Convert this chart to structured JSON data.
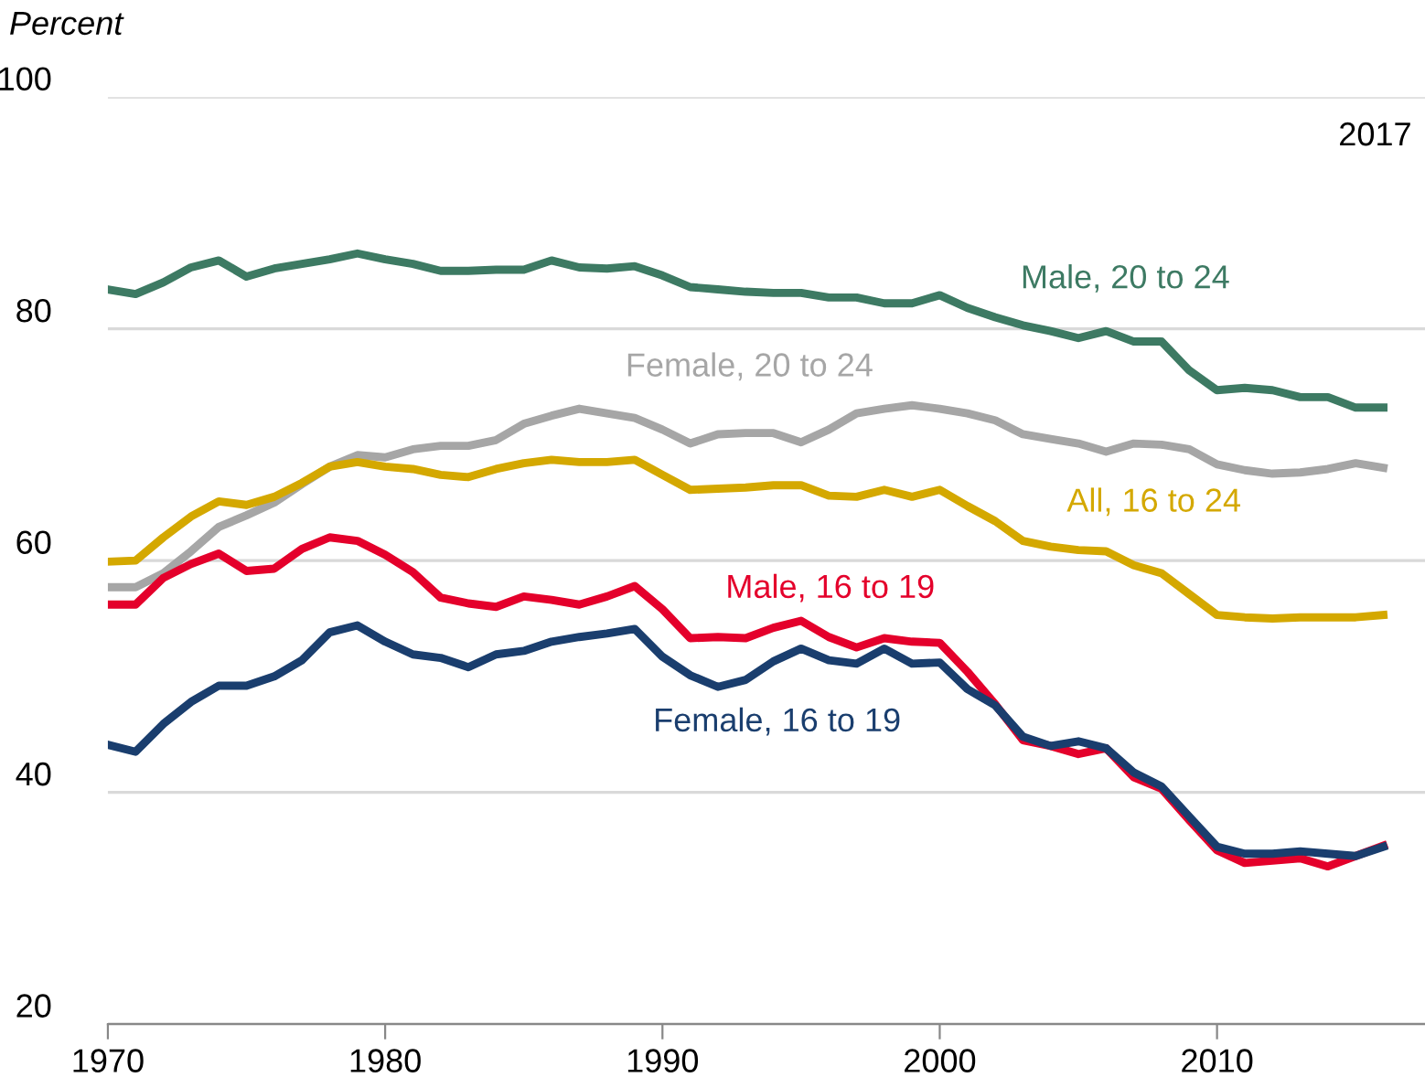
{
  "chart_data": {
    "type": "line",
    "ylabel": "Percent",
    "annotations": [
      "2017"
    ],
    "x": [
      1970,
      1971,
      1972,
      1973,
      1974,
      1975,
      1976,
      1977,
      1978,
      1979,
      1980,
      1981,
      1982,
      1983,
      1984,
      1985,
      1986,
      1987,
      1988,
      1989,
      1990,
      1991,
      1992,
      1993,
      1994,
      1995,
      1996,
      1997,
      1998,
      1999,
      2000,
      2001,
      2002,
      2003,
      2004,
      2005,
      2006,
      2007,
      2008,
      2009,
      2010,
      2011,
      2012,
      2013,
      2014,
      2015,
      2016
    ],
    "series": [
      {
        "name": "Male, 20 to 24",
        "color": "#3d7a63",
        "values": [
          83.4,
          83.0,
          84.0,
          85.3,
          85.9,
          84.5,
          85.2,
          85.6,
          86.0,
          86.5,
          86.0,
          85.6,
          85.0,
          85.0,
          85.1,
          85.1,
          85.9,
          85.3,
          85.2,
          85.4,
          84.6,
          83.6,
          83.4,
          83.2,
          83.1,
          83.1,
          82.7,
          82.7,
          82.2,
          82.2,
          82.9,
          81.8,
          81.0,
          80.3,
          79.8,
          79.2,
          79.8,
          78.9,
          78.9,
          76.4,
          74.7,
          74.9,
          74.7,
          74.1,
          74.1,
          73.2,
          73.2
        ]
      },
      {
        "name": "Female, 20 to 24",
        "color": "#a6a6a6",
        "values": [
          57.7,
          57.7,
          58.9,
          60.8,
          62.9,
          63.9,
          65.0,
          66.6,
          68.1,
          69.1,
          68.9,
          69.6,
          69.9,
          69.9,
          70.4,
          71.8,
          72.5,
          73.1,
          72.7,
          72.3,
          71.3,
          70.1,
          70.9,
          71.0,
          71.0,
          70.2,
          71.3,
          72.7,
          73.1,
          73.4,
          73.1,
          72.7,
          72.1,
          70.9,
          70.5,
          70.1,
          69.4,
          70.1,
          70.0,
          69.6,
          68.3,
          67.8,
          67.5,
          67.6,
          67.9,
          68.4,
          68.0
        ]
      },
      {
        "name": "All, 16 to 24",
        "color": "#d4a800",
        "values": [
          59.9,
          60.0,
          62.0,
          63.8,
          65.1,
          64.8,
          65.5,
          66.7,
          68.1,
          68.5,
          68.1,
          67.9,
          67.4,
          67.2,
          67.9,
          68.4,
          68.7,
          68.5,
          68.5,
          68.7,
          67.4,
          66.1,
          66.2,
          66.3,
          66.5,
          66.5,
          65.6,
          65.5,
          66.1,
          65.5,
          66.1,
          64.7,
          63.4,
          61.7,
          61.2,
          60.9,
          60.8,
          59.6,
          58.9,
          57.1,
          55.3,
          55.1,
          55.0,
          55.1,
          55.1,
          55.1,
          55.3
        ]
      },
      {
        "name": "Male, 16 to 19",
        "color": "#e4002b",
        "values": [
          56.2,
          56.2,
          58.5,
          59.7,
          60.6,
          59.1,
          59.3,
          61.0,
          62.0,
          61.7,
          60.5,
          59.0,
          56.8,
          56.3,
          56.0,
          56.9,
          56.6,
          56.2,
          56.9,
          57.8,
          55.8,
          53.3,
          53.4,
          53.3,
          54.2,
          54.8,
          53.4,
          52.5,
          53.3,
          53.0,
          52.9,
          50.4,
          47.6,
          44.5,
          44.0,
          43.3,
          43.8,
          41.3,
          40.3,
          37.6,
          35.0,
          33.9,
          34.1,
          34.3,
          33.6,
          34.5,
          35.4
        ]
      },
      {
        "name": "Female, 16 to 19",
        "color": "#1a3e6e",
        "values": [
          44.1,
          43.5,
          45.9,
          47.8,
          49.2,
          49.2,
          50.0,
          51.4,
          53.8,
          54.4,
          53.0,
          51.9,
          51.6,
          50.8,
          51.9,
          52.2,
          53.0,
          53.4,
          53.7,
          54.1,
          51.7,
          50.1,
          49.1,
          49.7,
          51.3,
          52.4,
          51.4,
          51.1,
          52.4,
          51.1,
          51.2,
          48.9,
          47.5,
          44.8,
          44.0,
          44.4,
          43.8,
          41.7,
          40.5,
          37.9,
          35.3,
          34.7,
          34.7,
          34.9,
          34.7,
          34.5,
          35.3
        ]
      }
    ],
    "xlim": [
      1970,
      2017.5
    ],
    "xticks": [
      1970,
      1980,
      1990,
      2000,
      2010
    ],
    "ylim": [
      20,
      100
    ],
    "yticks": [
      20,
      40,
      60,
      80,
      100
    ],
    "grid": "y",
    "legend": false,
    "marker": "none",
    "line_style": "solid"
  }
}
